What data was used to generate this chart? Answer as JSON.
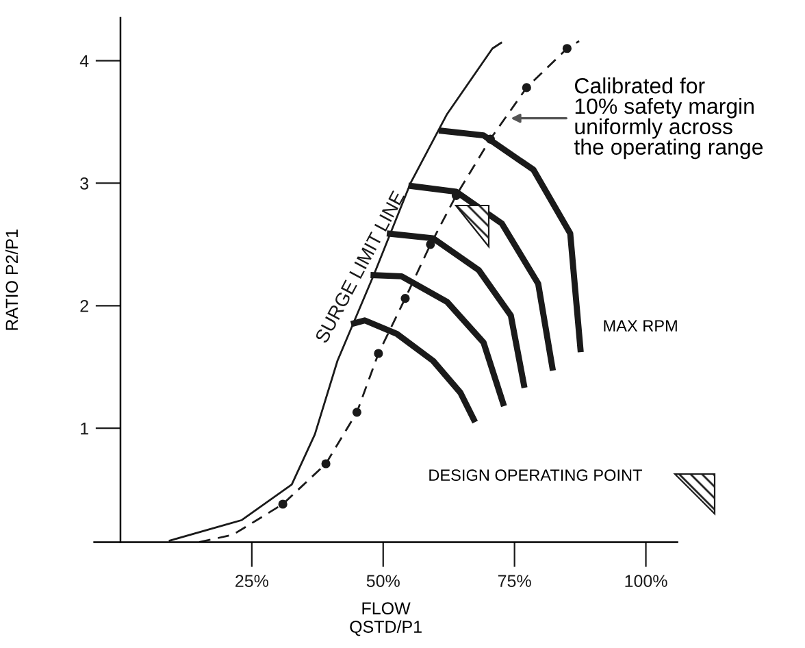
{
  "chart_data": {
    "type": "line",
    "xlabel": "FLOW\nQSTD/P1",
    "ylabel": "RATIO P2/P1",
    "xlim": [
      -5,
      106
    ],
    "ylim": [
      0.07,
      4.35
    ],
    "xticks": [
      {
        "value": 25,
        "label": "25%"
      },
      {
        "value": 50,
        "label": "50%"
      },
      {
        "value": 75,
        "label": "75%"
      },
      {
        "value": 100,
        "label": "100%"
      }
    ],
    "yticks": [
      1,
      2,
      3,
      4
    ],
    "grid": false,
    "legend": false,
    "series": [
      {
        "name": "SURGE LIMIT LINE",
        "color": "#1a1a1a",
        "line_style": "solid",
        "marker": "none",
        "x": [
          9.2,
          23.1,
          32.6,
          37.0,
          41.3,
          48.3,
          55.2,
          62.1,
          70.8,
          72.6
        ],
        "values": [
          0.08,
          0.25,
          0.54,
          0.95,
          1.55,
          2.26,
          3.0,
          3.56,
          4.1,
          4.15
        ]
      },
      {
        "color": "#1a1a1a",
        "line_style": "dashed",
        "marker": "none",
        "x": [
          15,
          21.4,
          30.9,
          39.1,
          45.0,
          49.1,
          54.2,
          59.0,
          63.9,
          70.4,
          77.3,
          85.0,
          87.3
        ],
        "values": [
          0.07,
          0.13,
          0.38,
          0.71,
          1.13,
          1.61,
          2.06,
          2.5,
          2.9,
          3.36,
          3.78,
          4.1,
          4.16
        ]
      },
      {
        "type": "scatter",
        "color": "#1a1a1a",
        "marker": "circle",
        "x": [
          30.9,
          39.1,
          45.0,
          49.1,
          54.2,
          59.0,
          63.9,
          70.4,
          77.3,
          85.0
        ],
        "values": [
          0.38,
          0.71,
          1.13,
          1.61,
          2.06,
          2.5,
          2.9,
          3.36,
          3.78,
          4.1
        ]
      },
      {
        "color": "#1a1a1a",
        "line_style": "solid",
        "marker": "none",
        "x": [
          43.9,
          46.5,
          52.6,
          59.5,
          64.7,
          67.5
        ],
        "values": [
          1.85,
          1.88,
          1.77,
          1.55,
          1.29,
          1.05
        ]
      },
      {
        "color": "#1a1a1a",
        "line_style": "solid",
        "marker": "none",
        "x": [
          47.6,
          53.5,
          62.2,
          69.1,
          73.0
        ],
        "values": [
          2.25,
          2.24,
          2.03,
          1.7,
          1.18
        ]
      },
      {
        "color": "#1a1a1a",
        "line_style": "solid",
        "marker": "none",
        "x": [
          50.7,
          59.5,
          68.2,
          74.3,
          76.9
        ],
        "values": [
          2.59,
          2.55,
          2.29,
          1.92,
          1.33
        ]
      },
      {
        "color": "#1a1a1a",
        "line_style": "solid",
        "marker": "none",
        "x": [
          54.8,
          63.9,
          72.6,
          79.5,
          82.3
        ],
        "values": [
          2.98,
          2.93,
          2.67,
          2.18,
          1.47
        ]
      },
      {
        "color": "#1a1a1a",
        "line_style": "solid",
        "marker": "none",
        "x": [
          60.6,
          69.1,
          78.6,
          85.6,
          87.6
        ],
        "values": [
          3.43,
          3.39,
          3.11,
          2.59,
          1.62
        ]
      }
    ],
    "annotations": [
      {
        "text": "Calibrated for\n10% safety margin\nuniformly across\nthe operating range",
        "x": 74.3,
        "y": 3.53
      },
      "MAX RPM",
      "DESIGN OPERATING POINT"
    ]
  }
}
